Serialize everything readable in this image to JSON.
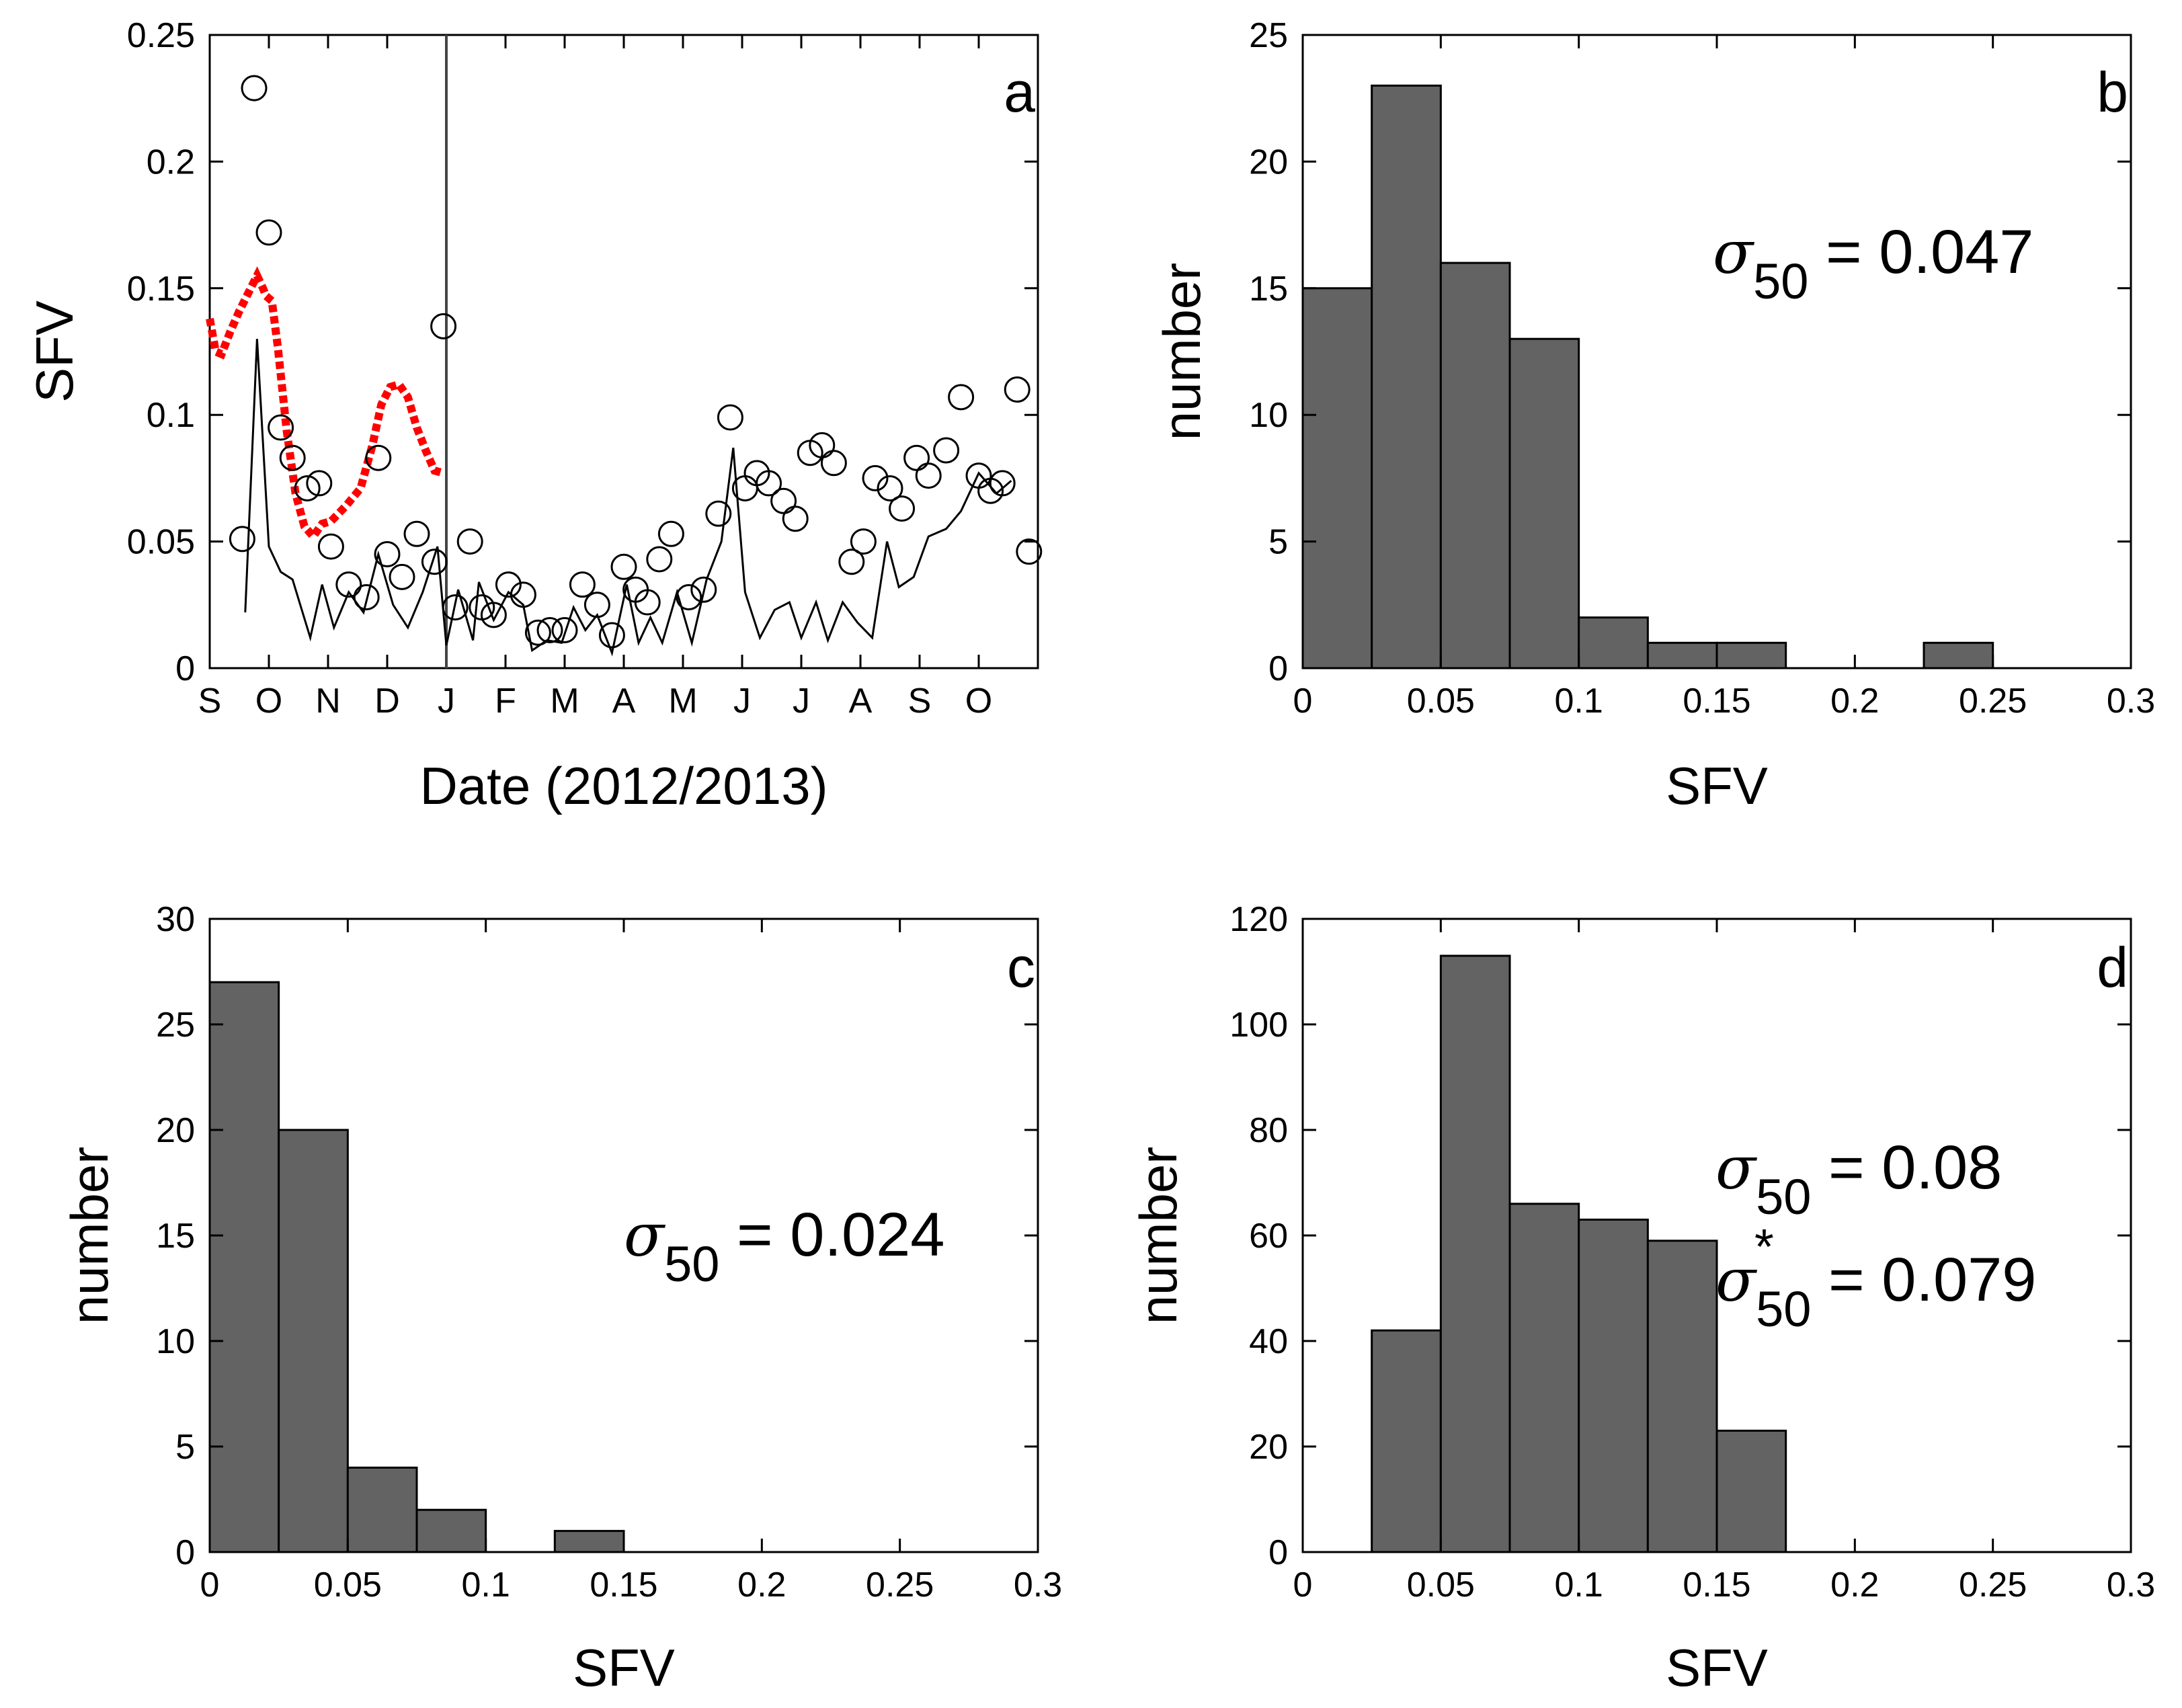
{
  "chart_data": [
    {
      "panel": "a",
      "type": "scatter",
      "xlabel": "Date (2012/2013)",
      "ylabel": "SFV",
      "ylim": [
        0,
        0.25
      ],
      "yticks": [
        "0",
        "0.05",
        "0.1",
        "0.15",
        "0.2",
        "0.25"
      ],
      "xlim": [
        0,
        14
      ],
      "xtick_labels": [
        "S",
        "O",
        "N",
        "D",
        "J",
        "F",
        "M",
        "A",
        "M",
        "J",
        "J",
        "A",
        "S",
        "O"
      ],
      "divider_month": 4,
      "series": [
        {
          "name": "circles",
          "marker": "open-circle",
          "color": "#000000",
          "points": [
            [
              0.55,
              0.051
            ],
            [
              0.75,
              0.229
            ],
            [
              1.0,
              0.172
            ],
            [
              1.2,
              0.095
            ],
            [
              1.4,
              0.083
            ],
            [
              1.65,
              0.071
            ],
            [
              1.85,
              0.073
            ],
            [
              2.05,
              0.048
            ],
            [
              2.35,
              0.033
            ],
            [
              2.65,
              0.028
            ],
            [
              2.85,
              0.083
            ],
            [
              3.0,
              0.045
            ],
            [
              3.25,
              0.036
            ],
            [
              3.5,
              0.053
            ],
            [
              3.8,
              0.042
            ],
            [
              3.95,
              0.135
            ],
            [
              4.15,
              0.024
            ],
            [
              4.4,
              0.05
            ],
            [
              4.6,
              0.024
            ],
            [
              4.8,
              0.021
            ],
            [
              5.05,
              0.033
            ],
            [
              5.3,
              0.029
            ],
            [
              5.55,
              0.014
            ],
            [
              5.75,
              0.015
            ],
            [
              6.0,
              0.015
            ],
            [
              6.3,
              0.033
            ],
            [
              6.55,
              0.025
            ],
            [
              6.8,
              0.013
            ],
            [
              7.0,
              0.04
            ],
            [
              7.2,
              0.031
            ],
            [
              7.4,
              0.026
            ],
            [
              7.6,
              0.043
            ],
            [
              7.8,
              0.053
            ],
            [
              8.1,
              0.028
            ],
            [
              8.35,
              0.031
            ],
            [
              8.6,
              0.061
            ],
            [
              8.8,
              0.099
            ],
            [
              9.05,
              0.071
            ],
            [
              9.25,
              0.077
            ],
            [
              9.45,
              0.073
            ],
            [
              9.7,
              0.066
            ],
            [
              9.9,
              0.059
            ],
            [
              10.15,
              0.085
            ],
            [
              10.35,
              0.088
            ],
            [
              10.55,
              0.081
            ],
            [
              10.85,
              0.042
            ],
            [
              11.05,
              0.05
            ],
            [
              11.25,
              0.075
            ],
            [
              11.5,
              0.071
            ],
            [
              11.7,
              0.063
            ],
            [
              11.95,
              0.083
            ],
            [
              12.15,
              0.076
            ],
            [
              12.45,
              0.086
            ],
            [
              12.7,
              0.107
            ],
            [
              13.0,
              0.076
            ],
            [
              13.2,
              0.07
            ],
            [
              13.4,
              0.073
            ],
            [
              13.65,
              0.11
            ],
            [
              13.85,
              0.046
            ]
          ]
        },
        {
          "name": "thin line",
          "style": "solid",
          "color": "#000000",
          "points": [
            [
              0.6,
              0.022
            ],
            [
              0.8,
              0.13
            ],
            [
              1.0,
              0.048
            ],
            [
              1.2,
              0.038
            ],
            [
              1.4,
              0.035
            ],
            [
              1.7,
              0.012
            ],
            [
              1.9,
              0.033
            ],
            [
              2.1,
              0.016
            ],
            [
              2.35,
              0.03
            ],
            [
              2.6,
              0.022
            ],
            [
              2.85,
              0.045
            ],
            [
              3.1,
              0.025
            ],
            [
              3.35,
              0.016
            ],
            [
              3.6,
              0.03
            ],
            [
              3.85,
              0.048
            ],
            [
              4.0,
              0.009
            ],
            [
              4.2,
              0.031
            ],
            [
              4.45,
              0.011
            ],
            [
              4.55,
              0.034
            ],
            [
              4.8,
              0.019
            ],
            [
              5.05,
              0.03
            ],
            [
              5.3,
              0.025
            ],
            [
              5.45,
              0.007
            ],
            [
              5.7,
              0.011
            ],
            [
              5.95,
              0.01
            ],
            [
              6.15,
              0.024
            ],
            [
              6.35,
              0.015
            ],
            [
              6.55,
              0.021
            ],
            [
              6.8,
              0.006
            ],
            [
              7.05,
              0.033
            ],
            [
              7.25,
              0.01
            ],
            [
              7.45,
              0.02
            ],
            [
              7.65,
              0.01
            ],
            [
              7.9,
              0.03
            ],
            [
              8.15,
              0.01
            ],
            [
              8.4,
              0.035
            ],
            [
              8.65,
              0.05
            ],
            [
              8.85,
              0.087
            ],
            [
              9.05,
              0.03
            ],
            [
              9.3,
              0.012
            ],
            [
              9.55,
              0.023
            ],
            [
              9.8,
              0.026
            ],
            [
              10.0,
              0.012
            ],
            [
              10.25,
              0.026
            ],
            [
              10.45,
              0.011
            ],
            [
              10.7,
              0.026
            ],
            [
              10.95,
              0.018
            ],
            [
              11.2,
              0.012
            ],
            [
              11.45,
              0.05
            ],
            [
              11.65,
              0.032
            ],
            [
              11.9,
              0.036
            ],
            [
              12.15,
              0.052
            ],
            [
              12.45,
              0.055
            ],
            [
              12.7,
              0.062
            ],
            [
              13.0,
              0.077
            ],
            [
              13.3,
              0.069
            ],
            [
              13.55,
              0.074
            ]
          ]
        },
        {
          "name": "red dotted",
          "style": "dotted",
          "color": "#ff0000",
          "points": [
            [
              0.0,
              0.138
            ],
            [
              0.1,
              0.125
            ],
            [
              0.2,
              0.124
            ],
            [
              0.35,
              0.133
            ],
            [
              0.5,
              0.141
            ],
            [
              0.65,
              0.148
            ],
            [
              0.8,
              0.155
            ],
            [
              0.9,
              0.15
            ],
            [
              0.95,
              0.147
            ],
            [
              1.05,
              0.145
            ],
            [
              1.15,
              0.127
            ],
            [
              1.3,
              0.094
            ],
            [
              1.45,
              0.069
            ],
            [
              1.6,
              0.056
            ],
            [
              1.75,
              0.052
            ],
            [
              1.9,
              0.057
            ],
            [
              2.05,
              0.058
            ],
            [
              2.3,
              0.064
            ],
            [
              2.55,
              0.071
            ],
            [
              2.75,
              0.088
            ],
            [
              2.9,
              0.104
            ],
            [
              3.05,
              0.111
            ],
            [
              3.2,
              0.112
            ],
            [
              3.35,
              0.107
            ],
            [
              3.5,
              0.095
            ],
            [
              3.65,
              0.086
            ],
            [
              3.8,
              0.078
            ],
            [
              3.95,
              0.077
            ]
          ]
        }
      ]
    },
    {
      "panel": "b",
      "type": "bar",
      "xlabel": "SFV",
      "ylabel": "number",
      "xlim": [
        0,
        0.3
      ],
      "xticks": [
        "0",
        "0.05",
        "0.1",
        "0.15",
        "0.2",
        "0.25",
        "0.3"
      ],
      "ylim": [
        0,
        25
      ],
      "yticks": [
        "0",
        "5",
        "10",
        "15",
        "20",
        "25"
      ],
      "bin_width": 0.025,
      "bin_starts": [
        0,
        0.025,
        0.05,
        0.075,
        0.1,
        0.125,
        0.15,
        0.175,
        0.2,
        0.225
      ],
      "values": [
        15,
        23,
        16,
        13,
        2,
        1,
        1,
        0,
        0,
        1
      ],
      "bar_color": "#636363",
      "annotations": [
        {
          "symbol": "σ",
          "subscript": "50",
          "text": " = 0.047"
        }
      ]
    },
    {
      "panel": "c",
      "type": "bar",
      "xlabel": "SFV",
      "ylabel": "number",
      "xlim": [
        0,
        0.3
      ],
      "xticks": [
        "0",
        "0.05",
        "0.1",
        "0.15",
        "0.2",
        "0.25",
        "0.3"
      ],
      "ylim": [
        0,
        30
      ],
      "yticks": [
        "0",
        "5",
        "10",
        "15",
        "20",
        "25",
        "30"
      ],
      "bin_width": 0.025,
      "bin_starts": [
        0,
        0.025,
        0.05,
        0.075,
        0.1,
        0.125
      ],
      "values": [
        27,
        20,
        4,
        2,
        0,
        1
      ],
      "bar_color": "#636363",
      "annotations": [
        {
          "symbol": "σ",
          "subscript": "50",
          "text": " = 0.024"
        }
      ]
    },
    {
      "panel": "d",
      "type": "bar",
      "xlabel": "SFV",
      "ylabel": "number",
      "xlim": [
        0,
        0.3
      ],
      "xticks": [
        "0",
        "0.05",
        "0.1",
        "0.15",
        "0.2",
        "0.25",
        "0.3"
      ],
      "ylim": [
        0,
        120
      ],
      "yticks": [
        "0",
        "20",
        "40",
        "60",
        "80",
        "100",
        "120"
      ],
      "bin_width": 0.025,
      "bin_starts": [
        0.025,
        0.05,
        0.075,
        0.1,
        0.125,
        0.15
      ],
      "values": [
        42,
        113,
        66,
        63,
        59,
        23
      ],
      "bar_color": "#636363",
      "annotations": [
        {
          "symbol": "σ",
          "subscript": "50",
          "text": " = 0.08"
        },
        {
          "symbol": "σ",
          "star": "*",
          "subscript": "50",
          "text": " = 0.079"
        }
      ]
    }
  ]
}
